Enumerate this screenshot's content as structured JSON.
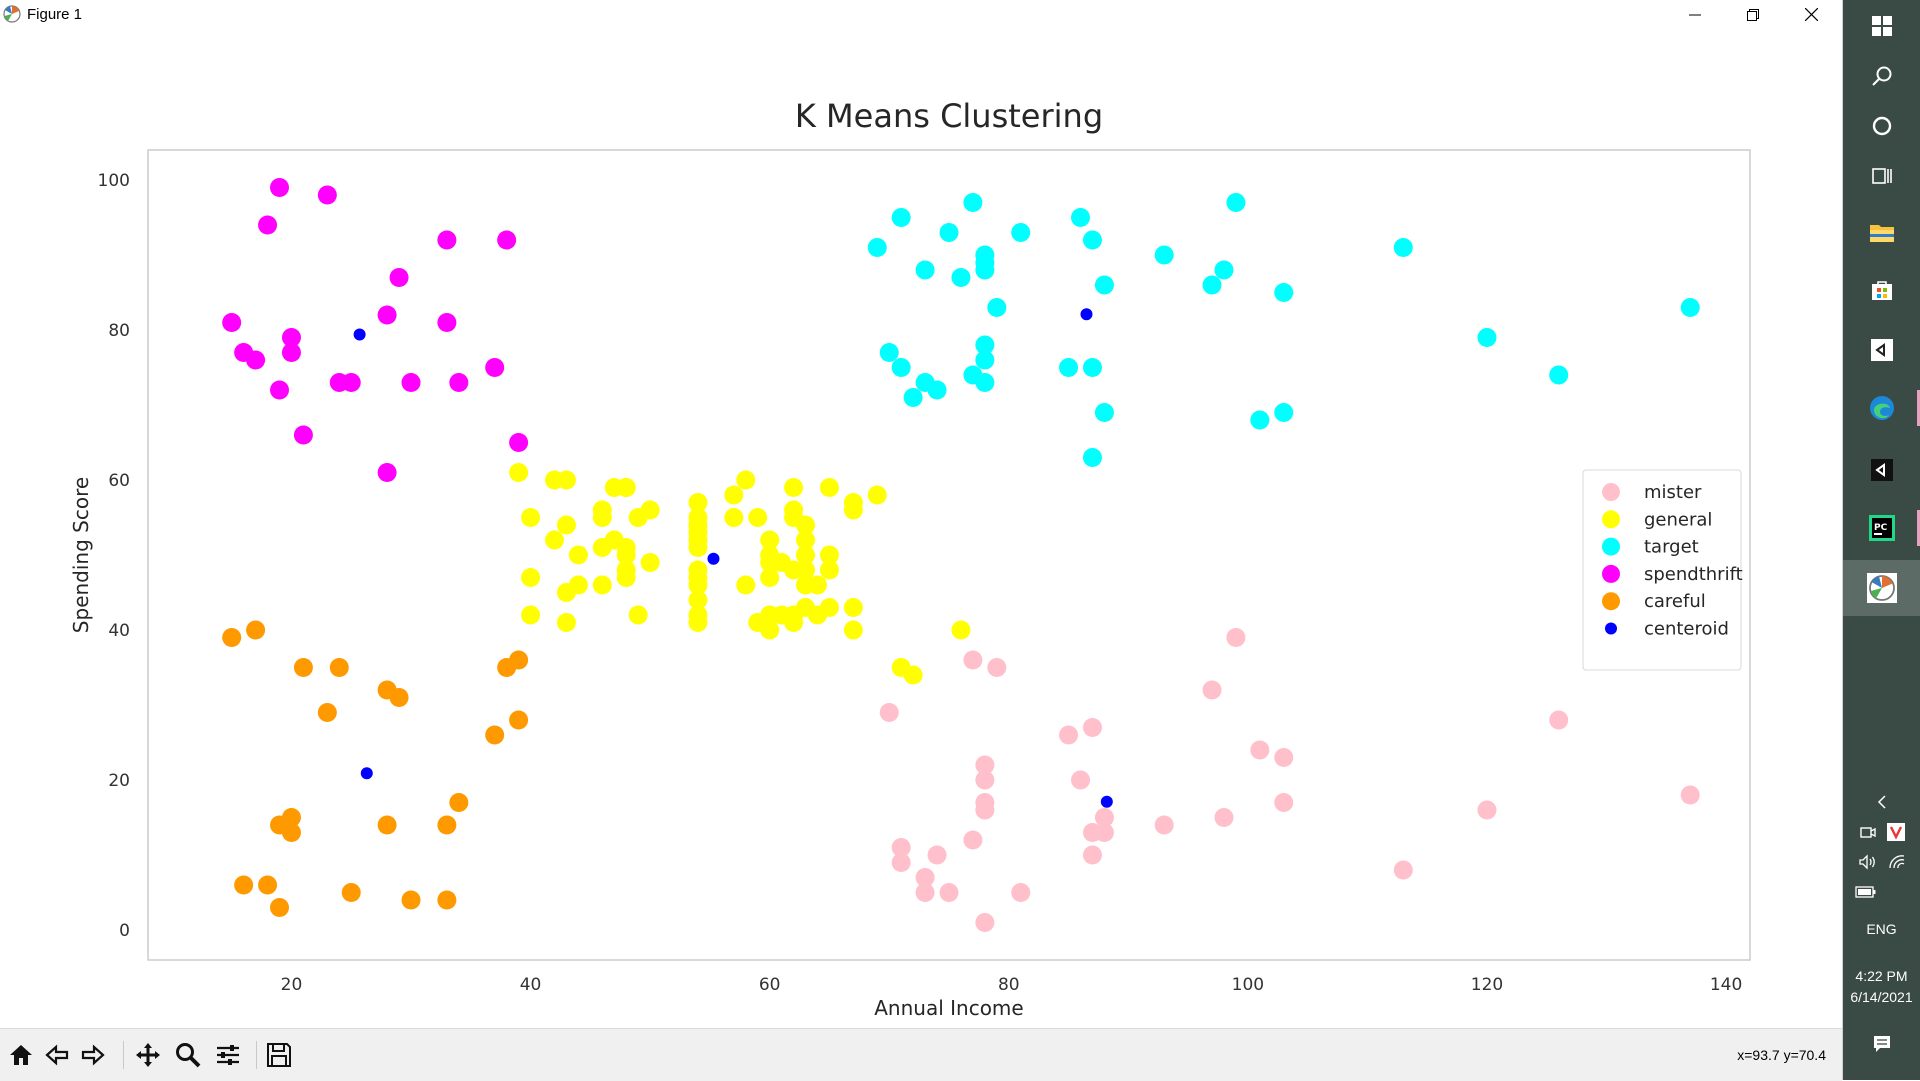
{
  "window": {
    "title": "Figure 1"
  },
  "chart_data": {
    "type": "scatter",
    "title": "K Means Clustering",
    "xlabel": "Annual Income",
    "ylabel": "Spending Score",
    "xlim": [
      8,
      142
    ],
    "ylim": [
      -4,
      104
    ],
    "xticks": [
      20,
      40,
      60,
      80,
      100,
      120,
      140
    ],
    "yticks": [
      0,
      20,
      40,
      60,
      80,
      100
    ],
    "grid": false,
    "legend_position": "center-right",
    "series": [
      {
        "name": "mister",
        "color": "#ffc0cb",
        "marker_size": "large",
        "points": [
          [
            70,
            29
          ],
          [
            71,
            11
          ],
          [
            71,
            9
          ],
          [
            73,
            5
          ],
          [
            73,
            7
          ],
          [
            74,
            10
          ],
          [
            75,
            5
          ],
          [
            77,
            12
          ],
          [
            77,
            36
          ],
          [
            78,
            22
          ],
          [
            78,
            20
          ],
          [
            78,
            17
          ],
          [
            78,
            16
          ],
          [
            78,
            1
          ],
          [
            79,
            35
          ],
          [
            81,
            5
          ],
          [
            85,
            26
          ],
          [
            86,
            20
          ],
          [
            87,
            27
          ],
          [
            87,
            13
          ],
          [
            87,
            10
          ],
          [
            88,
            13
          ],
          [
            88,
            15
          ],
          [
            93,
            14
          ],
          [
            97,
            32
          ],
          [
            98,
            15
          ],
          [
            99,
            39
          ],
          [
            101,
            24
          ],
          [
            103,
            23
          ],
          [
            103,
            17
          ],
          [
            113,
            8
          ],
          [
            120,
            16
          ],
          [
            126,
            28
          ],
          [
            137,
            18
          ]
        ]
      },
      {
        "name": "general",
        "color": "#ffff00",
        "marker_size": "large",
        "points": [
          [
            39,
            61
          ],
          [
            40,
            55
          ],
          [
            40,
            47
          ],
          [
            40,
            42
          ],
          [
            42,
            52
          ],
          [
            42,
            60
          ],
          [
            43,
            54
          ],
          [
            43,
            60
          ],
          [
            43,
            45
          ],
          [
            43,
            41
          ],
          [
            44,
            50
          ],
          [
            44,
            46
          ],
          [
            46,
            51
          ],
          [
            46,
            46
          ],
          [
            46,
            56
          ],
          [
            46,
            55
          ],
          [
            47,
            52
          ],
          [
            47,
            59
          ],
          [
            48,
            51
          ],
          [
            48,
            59
          ],
          [
            48,
            50
          ],
          [
            48,
            48
          ],
          [
            48,
            59
          ],
          [
            48,
            47
          ],
          [
            49,
            55
          ],
          [
            49,
            42
          ],
          [
            50,
            49
          ],
          [
            50,
            56
          ],
          [
            54,
            47
          ],
          [
            54,
            54
          ],
          [
            54,
            53
          ],
          [
            54,
            48
          ],
          [
            54,
            52
          ],
          [
            54,
            42
          ],
          [
            54,
            51
          ],
          [
            54,
            55
          ],
          [
            54,
            41
          ],
          [
            54,
            44
          ],
          [
            54,
            57
          ],
          [
            54,
            46
          ],
          [
            57,
            58
          ],
          [
            57,
            55
          ],
          [
            58,
            60
          ],
          [
            58,
            46
          ],
          [
            59,
            55
          ],
          [
            59,
            41
          ],
          [
            60,
            49
          ],
          [
            60,
            40
          ],
          [
            60,
            42
          ],
          [
            60,
            52
          ],
          [
            60,
            47
          ],
          [
            60,
            50
          ],
          [
            61,
            42
          ],
          [
            61,
            49
          ],
          [
            62,
            41
          ],
          [
            62,
            48
          ],
          [
            62,
            59
          ],
          [
            62,
            55
          ],
          [
            62,
            56
          ],
          [
            62,
            42
          ],
          [
            63,
            50
          ],
          [
            63,
            46
          ],
          [
            63,
            43
          ],
          [
            63,
            48
          ],
          [
            63,
            52
          ],
          [
            63,
            54
          ],
          [
            64,
            42
          ],
          [
            64,
            46
          ],
          [
            65,
            48
          ],
          [
            65,
            50
          ],
          [
            65,
            43
          ],
          [
            65,
            59
          ],
          [
            67,
            43
          ],
          [
            67,
            57
          ],
          [
            67,
            56
          ],
          [
            67,
            40
          ],
          [
            69,
            58
          ],
          [
            76,
            40
          ],
          [
            71,
            35
          ],
          [
            72,
            34
          ]
        ]
      },
      {
        "name": "target",
        "color": "#00ffff",
        "marker_size": "large",
        "points": [
          [
            69,
            91
          ],
          [
            70,
            77
          ],
          [
            71,
            95
          ],
          [
            71,
            75
          ],
          [
            72,
            71
          ],
          [
            73,
            88
          ],
          [
            73,
            73
          ],
          [
            74,
            72
          ],
          [
            75,
            93
          ],
          [
            76,
            87
          ],
          [
            77,
            97
          ],
          [
            77,
            74
          ],
          [
            78,
            90
          ],
          [
            78,
            88
          ],
          [
            78,
            76
          ],
          [
            78,
            89
          ],
          [
            78,
            78
          ],
          [
            78,
            73
          ],
          [
            79,
            83
          ],
          [
            81,
            93
          ],
          [
            85,
            75
          ],
          [
            86,
            95
          ],
          [
            87,
            63
          ],
          [
            87,
            75
          ],
          [
            87,
            92
          ],
          [
            88,
            86
          ],
          [
            88,
            69
          ],
          [
            93,
            90
          ],
          [
            97,
            86
          ],
          [
            98,
            88
          ],
          [
            99,
            97
          ],
          [
            101,
            68
          ],
          [
            103,
            85
          ],
          [
            103,
            69
          ],
          [
            113,
            91
          ],
          [
            120,
            79
          ],
          [
            126,
            74
          ],
          [
            137,
            83
          ]
        ]
      },
      {
        "name": "spendthrift",
        "color": "#ff00ff",
        "marker_size": "large",
        "points": [
          [
            15,
            81
          ],
          [
            16,
            77
          ],
          [
            17,
            76
          ],
          [
            18,
            94
          ],
          [
            19,
            72
          ],
          [
            19,
            99
          ],
          [
            20,
            77
          ],
          [
            20,
            79
          ],
          [
            21,
            66
          ],
          [
            23,
            98
          ],
          [
            24,
            73
          ],
          [
            25,
            73
          ],
          [
            28,
            82
          ],
          [
            28,
            61
          ],
          [
            29,
            87
          ],
          [
            30,
            73
          ],
          [
            33,
            92
          ],
          [
            33,
            81
          ],
          [
            34,
            73
          ],
          [
            37,
            75
          ],
          [
            38,
            92
          ],
          [
            39,
            65
          ]
        ]
      },
      {
        "name": "careful",
        "color": "#ff9900",
        "marker_size": "large",
        "points": [
          [
            15,
            39
          ],
          [
            16,
            6
          ],
          [
            17,
            40
          ],
          [
            18,
            6
          ],
          [
            19,
            3
          ],
          [
            19,
            14
          ],
          [
            20,
            15
          ],
          [
            20,
            13
          ],
          [
            21,
            35
          ],
          [
            23,
            29
          ],
          [
            24,
            35
          ],
          [
            25,
            5
          ],
          [
            28,
            14
          ],
          [
            28,
            32
          ],
          [
            29,
            31
          ],
          [
            30,
            4
          ],
          [
            33,
            4
          ],
          [
            33,
            14
          ],
          [
            34,
            17
          ],
          [
            37,
            26
          ],
          [
            38,
            35
          ],
          [
            39,
            36
          ],
          [
            39,
            28
          ]
        ]
      },
      {
        "name": "centeroid",
        "color": "#0000ff",
        "marker_size": "small",
        "points": [
          [
            25.7,
            79.4
          ],
          [
            26.3,
            20.9
          ],
          [
            55.3,
            49.5
          ],
          [
            86.5,
            82.1
          ],
          [
            88.2,
            17.1
          ]
        ]
      }
    ]
  },
  "toolbar": {
    "buttons": [
      "home-icon",
      "back-icon",
      "forward-icon",
      "pan-icon",
      "zoom-icon",
      "configure-icon",
      "save-icon"
    ],
    "coords": "x=93.7 y=70.4"
  },
  "taskbar": {
    "lang": "ENG",
    "time": "4:22 PM",
    "date": "6/14/2021",
    "accent": "#3a4a44"
  }
}
